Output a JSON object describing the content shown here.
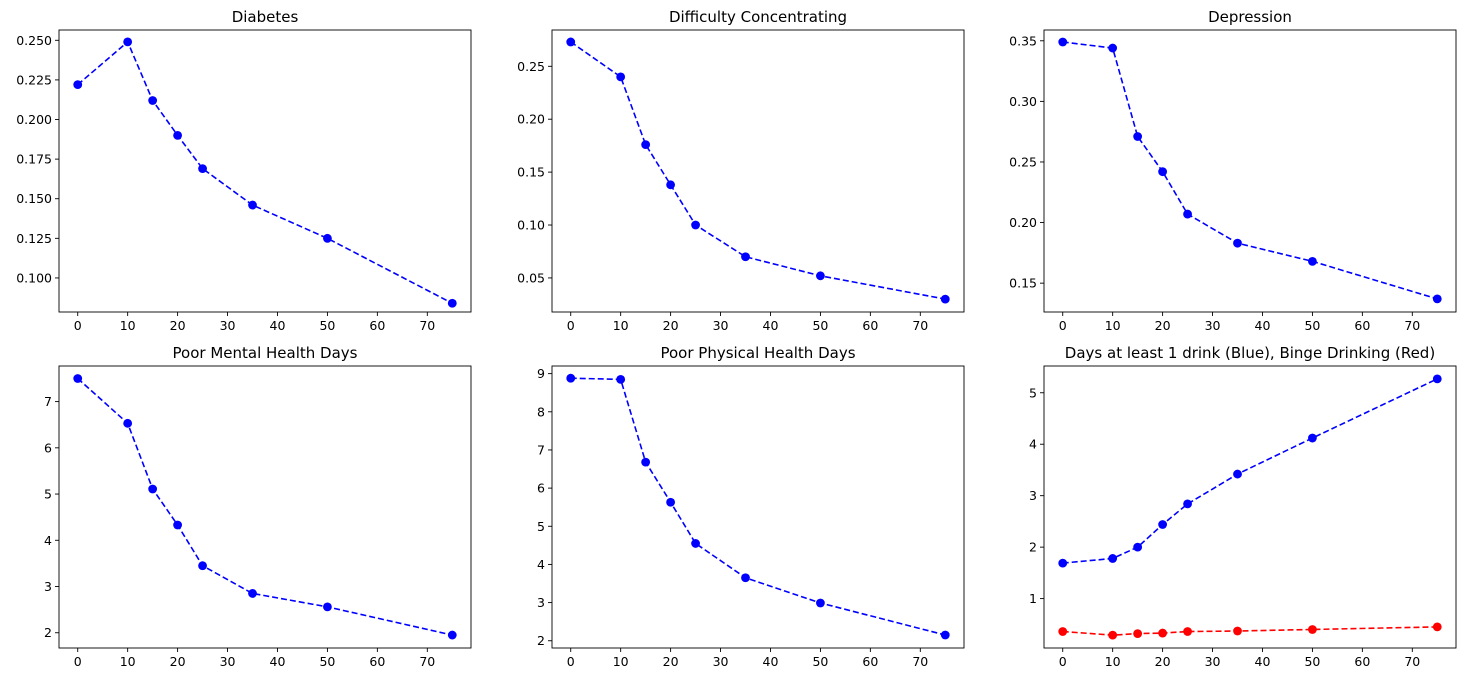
{
  "chart_data": [
    {
      "type": "line",
      "title": "Diabetes",
      "xlabel": "",
      "ylabel": "",
      "x": [
        0,
        10,
        15,
        20,
        25,
        35,
        50,
        75
      ],
      "xlim": [
        -3.75,
        78.75
      ],
      "ylim": [
        0.0785,
        0.2565
      ],
      "xticks": [
        0,
        10,
        20,
        30,
        40,
        50,
        60,
        70
      ],
      "xtick_labels": [
        "0",
        "10",
        "20",
        "30",
        "40",
        "50",
        "60",
        "70"
      ],
      "yticks": [
        0.1,
        0.125,
        0.15,
        0.175,
        0.2,
        0.225,
        0.25
      ],
      "ytick_labels": [
        "0.100",
        "0.125",
        "0.150",
        "0.175",
        "0.200",
        "0.225",
        "0.250"
      ],
      "grid": false,
      "series": [
        {
          "values": [
            0.222,
            0.249,
            0.212,
            0.19,
            0.169,
            0.146,
            0.125,
            0.084
          ],
          "color": "#0000ff",
          "linestyle": "dashed",
          "marker": "circle"
        }
      ]
    },
    {
      "type": "line",
      "title": "Difficulty Concentrating",
      "xlabel": "",
      "ylabel": "",
      "x": [
        0,
        10,
        15,
        20,
        25,
        35,
        50,
        75
      ],
      "xlim": [
        -3.75,
        78.75
      ],
      "ylim": [
        0.0178,
        0.2843
      ],
      "xticks": [
        0,
        10,
        20,
        30,
        40,
        50,
        60,
        70
      ],
      "xtick_labels": [
        "0",
        "10",
        "20",
        "30",
        "40",
        "50",
        "60",
        "70"
      ],
      "yticks": [
        0.05,
        0.1,
        0.15,
        0.2,
        0.25
      ],
      "ytick_labels": [
        "0.05",
        "0.10",
        "0.15",
        "0.20",
        "0.25"
      ],
      "grid": false,
      "series": [
        {
          "values": [
            0.273,
            0.24,
            0.176,
            0.138,
            0.1,
            0.07,
            0.052,
            0.03
          ],
          "color": "#0000ff",
          "linestyle": "dashed",
          "marker": "circle"
        }
      ]
    },
    {
      "type": "line",
      "title": "Depression",
      "xlabel": "",
      "ylabel": "",
      "x": [
        0,
        10,
        15,
        20,
        25,
        35,
        50,
        75
      ],
      "xlim": [
        -3.75,
        78.75
      ],
      "ylim": [
        0.1262,
        0.3589
      ],
      "xticks": [
        0,
        10,
        20,
        30,
        40,
        50,
        60,
        70
      ],
      "xtick_labels": [
        "0",
        "10",
        "20",
        "30",
        "40",
        "50",
        "60",
        "70"
      ],
      "yticks": [
        0.15,
        0.2,
        0.25,
        0.3,
        0.35
      ],
      "ytick_labels": [
        "0.15",
        "0.20",
        "0.25",
        "0.30",
        "0.35"
      ],
      "grid": false,
      "series": [
        {
          "values": [
            0.349,
            0.344,
            0.271,
            0.242,
            0.207,
            0.183,
            0.168,
            0.137
          ],
          "color": "#0000ff",
          "linestyle": "dashed",
          "marker": "circle"
        }
      ]
    },
    {
      "type": "line",
      "title": "Poor Mental Health Days",
      "xlabel": "",
      "ylabel": "",
      "x": [
        0,
        10,
        15,
        20,
        25,
        35,
        50,
        75
      ],
      "xlim": [
        -3.75,
        78.75
      ],
      "ylim": [
        1.67,
        7.77
      ],
      "xticks": [
        0,
        10,
        20,
        30,
        40,
        50,
        60,
        70
      ],
      "xtick_labels": [
        "0",
        "10",
        "20",
        "30",
        "40",
        "50",
        "60",
        "70"
      ],
      "yticks": [
        2,
        3,
        4,
        5,
        6,
        7
      ],
      "ytick_labels": [
        "2",
        "3",
        "4",
        "5",
        "6",
        "7"
      ],
      "grid": false,
      "series": [
        {
          "values": [
            7.5,
            6.53,
            5.11,
            4.33,
            3.45,
            2.85,
            2.56,
            1.95
          ],
          "color": "#0000ff",
          "linestyle": "dashed",
          "marker": "circle"
        }
      ]
    },
    {
      "type": "line",
      "title": "Poor Physical Health Days",
      "xlabel": "",
      "ylabel": "",
      "x": [
        0,
        10,
        15,
        20,
        25,
        35,
        50,
        75
      ],
      "xlim": [
        -3.75,
        78.75
      ],
      "ylim": [
        1.81,
        9.2
      ],
      "xticks": [
        0,
        10,
        20,
        30,
        40,
        50,
        60,
        70
      ],
      "xtick_labels": [
        "0",
        "10",
        "20",
        "30",
        "40",
        "50",
        "60",
        "70"
      ],
      "yticks": [
        2,
        3,
        4,
        5,
        6,
        7,
        8,
        9
      ],
      "ytick_labels": [
        "2",
        "3",
        "4",
        "5",
        "6",
        "7",
        "8",
        "9"
      ],
      "grid": false,
      "series": [
        {
          "values": [
            8.88,
            8.85,
            6.68,
            5.63,
            4.55,
            3.65,
            2.99,
            2.15
          ],
          "color": "#0000ff",
          "linestyle": "dashed",
          "marker": "circle"
        }
      ]
    },
    {
      "type": "line",
      "title": "Days at least 1 drink (Blue), Binge Drinking (Red)",
      "xlabel": "",
      "ylabel": "",
      "x": [
        0,
        10,
        15,
        20,
        25,
        35,
        50,
        75
      ],
      "xlim": [
        -3.75,
        78.75
      ],
      "ylim": [
        0.04,
        5.52
      ],
      "xticks": [
        0,
        10,
        20,
        30,
        40,
        50,
        60,
        70
      ],
      "xtick_labels": [
        "0",
        "10",
        "20",
        "30",
        "40",
        "50",
        "60",
        "70"
      ],
      "yticks": [
        1,
        2,
        3,
        4,
        5
      ],
      "ytick_labels": [
        "1",
        "2",
        "3",
        "4",
        "5"
      ],
      "grid": false,
      "series": [
        {
          "values": [
            1.69,
            1.78,
            2.0,
            2.44,
            2.84,
            3.42,
            4.12,
            5.27
          ],
          "color": "#0000ff",
          "linestyle": "dashed",
          "marker": "circle"
        },
        {
          "values": [
            0.36,
            0.29,
            0.32,
            0.33,
            0.36,
            0.37,
            0.4,
            0.45
          ],
          "color": "#ff0000",
          "linestyle": "dashed",
          "marker": "circle"
        }
      ]
    }
  ]
}
